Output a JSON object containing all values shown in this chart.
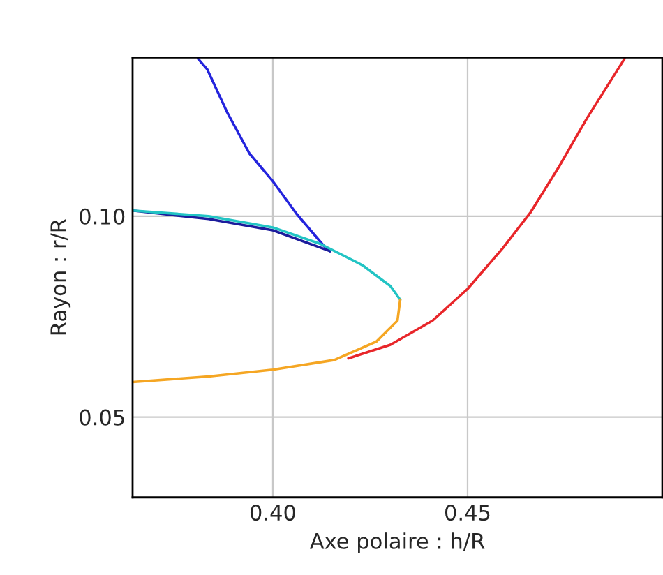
{
  "chart_data": {
    "type": "line",
    "xlabel": "Axe polaire : h/R",
    "ylabel": "Rayon : r/R",
    "xlim": [
      0.364,
      0.5
    ],
    "ylim": [
      0.03,
      0.1395
    ],
    "xticks": [
      {
        "value": 0.4,
        "label": "0.40"
      },
      {
        "value": 0.45,
        "label": "0.45"
      }
    ],
    "yticks": [
      {
        "value": 0.05,
        "label": "0.05"
      },
      {
        "value": 0.1,
        "label": "0.10"
      }
    ],
    "grid": true,
    "legend": false,
    "series": [
      {
        "color": "#2424dd",
        "x": [
          0.3808,
          0.3832,
          0.3882,
          0.394,
          0.4,
          0.406,
          0.4132,
          0.4147
        ],
        "values": [
          0.1392,
          0.1365,
          0.126,
          0.1156,
          0.1087,
          0.1007,
          0.0925,
          0.0913
        ]
      },
      {
        "color": "#1c1c9c",
        "x": [
          0.4147,
          0.4,
          0.3835,
          0.364
        ],
        "values": [
          0.0913,
          0.0965,
          0.0993,
          0.1014
        ]
      },
      {
        "color": "#22c4c4",
        "x": [
          0.364,
          0.3835,
          0.4,
          0.4122,
          0.423,
          0.4302,
          0.4327
        ],
        "values": [
          0.1014,
          0.1,
          0.0972,
          0.0931,
          0.0878,
          0.0826,
          0.0792
        ]
      },
      {
        "color": "#f5a623",
        "x": [
          0.4327,
          0.432,
          0.4266,
          0.4158,
          0.4,
          0.3835,
          0.364
        ],
        "values": [
          0.0792,
          0.074,
          0.0688,
          0.0642,
          0.0618,
          0.0601,
          0.0587
        ]
      },
      {
        "color": "#e8262a",
        "x": [
          0.4194,
          0.4302,
          0.441,
          0.45,
          0.459,
          0.4662,
          0.4734,
          0.4806,
          0.4903
        ],
        "values": [
          0.0646,
          0.068,
          0.074,
          0.0819,
          0.092,
          0.101,
          0.1122,
          0.1243,
          0.1392
        ]
      }
    ]
  }
}
